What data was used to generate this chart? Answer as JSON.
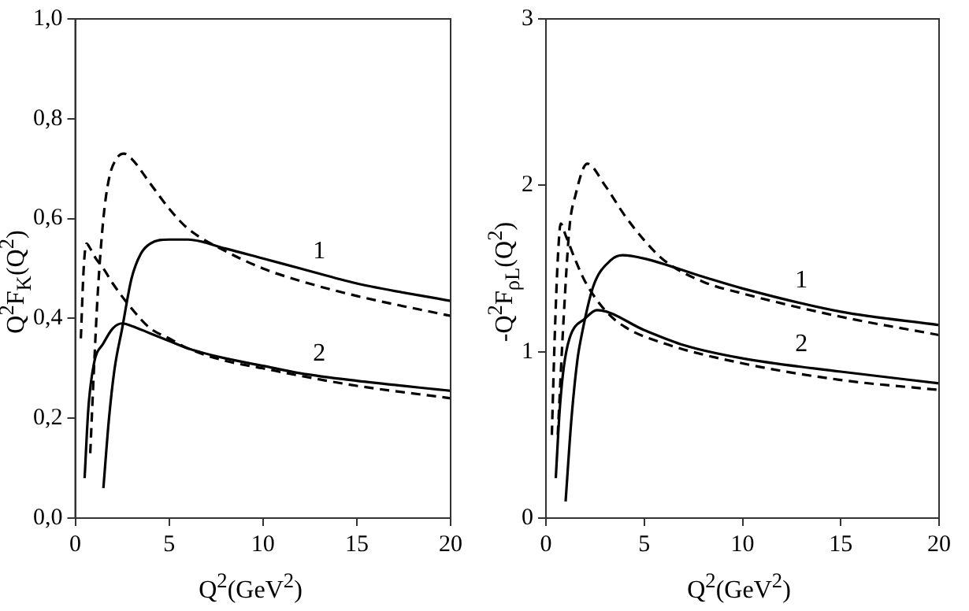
{
  "chart_data": [
    {
      "type": "line",
      "xlabel": "Q$^{2}$(GeV$^{2}$)",
      "ylabel": "Q$^{2}$F$_{K}$(Q$^{2}$)",
      "xlim": [
        0,
        20
      ],
      "xticks": [
        0,
        5,
        10,
        15,
        20
      ],
      "ylim": [
        0,
        1
      ],
      "yticks": [
        {
          "value": 0,
          "label": "0,0"
        },
        {
          "value": 0.2,
          "label": "0,2"
        },
        {
          "value": 0.4,
          "label": "0,4"
        },
        {
          "value": 0.6,
          "label": "0,6"
        },
        {
          "value": 0.8,
          "label": "0,8"
        },
        {
          "value": 1,
          "label": "1,0"
        }
      ],
      "grid": false,
      "legend": false,
      "marker": "none",
      "series": [
        {
          "color": "#000000",
          "line_style": "solid",
          "x": [
            1.5,
            1.8,
            2.1,
            2.5,
            3,
            3.5,
            4,
            5,
            6,
            8,
            10,
            12,
            15,
            20
          ],
          "values": [
            0.06,
            0.2,
            0.3,
            0.38,
            0.48,
            0.53,
            0.55,
            0.558,
            0.558,
            0.54,
            0.52,
            0.5,
            0.47,
            0.435
          ]
        },
        {
          "color": "#000000",
          "line_style": "solid",
          "x": [
            0.5,
            0.7,
            1,
            1.5,
            2,
            2.5,
            3,
            4,
            5,
            6,
            8,
            10,
            12,
            15,
            20
          ],
          "values": [
            0.08,
            0.22,
            0.31,
            0.35,
            0.38,
            0.39,
            0.385,
            0.37,
            0.355,
            0.34,
            0.32,
            0.305,
            0.29,
            0.275,
            0.255
          ]
        },
        {
          "color": "#000000",
          "line_style": "dashed",
          "x": [
            0.8,
            1,
            1.2,
            1.5,
            1.8,
            2.2,
            2.6,
            3,
            4,
            5,
            6,
            8,
            10,
            12,
            15,
            20
          ],
          "values": [
            0.13,
            0.3,
            0.45,
            0.6,
            0.68,
            0.72,
            0.73,
            0.72,
            0.67,
            0.62,
            0.58,
            0.535,
            0.5,
            0.475,
            0.445,
            0.405
          ]
        },
        {
          "color": "#000000",
          "line_style": "dashed",
          "x": [
            0.3,
            0.45,
            0.6,
            0.8,
            1.1,
            1.5,
            2,
            3,
            4,
            5,
            6,
            8,
            10,
            12,
            15,
            20
          ],
          "values": [
            0.36,
            0.5,
            0.55,
            0.54,
            0.52,
            0.5,
            0.47,
            0.42,
            0.38,
            0.36,
            0.34,
            0.315,
            0.3,
            0.285,
            0.265,
            0.24
          ]
        }
      ],
      "annotations": [
        "1",
        "2"
      ]
    },
    {
      "type": "line",
      "xlabel": "Q$^{2}$(GeV$^{2}$)",
      "ylabel": "-Q$^{2}$F$_{ρL}$(Q$^{2}$)",
      "xlim": [
        0,
        20
      ],
      "xticks": [
        0,
        5,
        10,
        15,
        20
      ],
      "ylim": [
        0,
        3
      ],
      "yticks": [
        0,
        1,
        2,
        3
      ],
      "grid": false,
      "legend": false,
      "marker": "none",
      "series": [
        {
          "color": "#000000",
          "line_style": "solid",
          "x": [
            1,
            1.3,
            1.6,
            1.8,
            2.4,
            3.3,
            3.9,
            5,
            8,
            10,
            15,
            20
          ],
          "values": [
            0.1,
            0.6,
            0.95,
            1.09,
            1.39,
            1.55,
            1.58,
            1.56,
            1.45,
            1.38,
            1.24,
            1.16
          ]
        },
        {
          "color": "#000000",
          "line_style": "solid",
          "x": [
            0.5,
            0.7,
            0.9,
            1.2,
            2,
            2.6,
            5,
            7,
            10,
            15,
            20
          ],
          "values": [
            0.24,
            0.65,
            0.9,
            1.08,
            1.2,
            1.25,
            1.13,
            1.04,
            0.96,
            0.88,
            0.81
          ]
        },
        {
          "color": "#000000",
          "line_style": "dashed",
          "x": [
            0.6,
            0.9,
            1.2,
            1.5,
            2.1,
            3,
            4,
            5,
            6,
            8,
            10,
            15,
            20
          ],
          "values": [
            0.5,
            1.2,
            1.75,
            1.94,
            2.13,
            2,
            1.82,
            1.67,
            1.55,
            1.42,
            1.35,
            1.21,
            1.1
          ]
        },
        {
          "color": "#000000",
          "line_style": "dashed",
          "x": [
            0.3,
            0.45,
            0.6,
            0.75,
            1,
            1.5,
            2,
            3,
            4,
            6,
            10,
            15,
            20
          ],
          "values": [
            0.5,
            1.1,
            1.55,
            1.77,
            1.7,
            1.55,
            1.42,
            1.25,
            1.15,
            1.05,
            0.93,
            0.83,
            0.77
          ]
        }
      ],
      "annotations": [
        "1",
        "2"
      ]
    }
  ]
}
